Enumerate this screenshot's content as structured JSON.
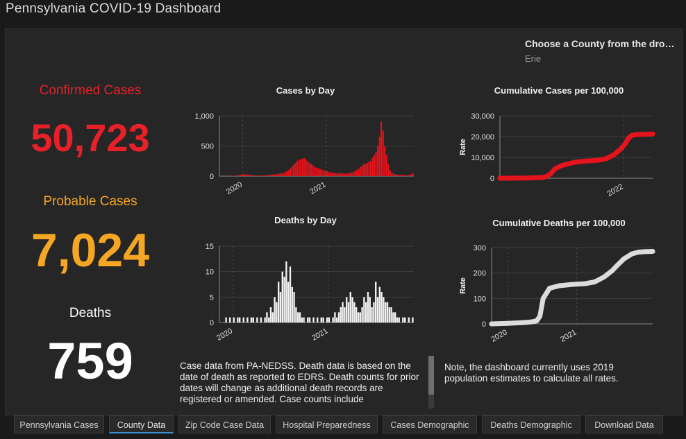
{
  "title": "Pennsylvania COVID-19 Dashboard",
  "county_select": {
    "label": "Choose a County from the dro…",
    "value": "Erie"
  },
  "stats": {
    "confirmed": {
      "label": "Confirmed Cases",
      "value": "50,723",
      "color": "#e8202a"
    },
    "probable": {
      "label": "Probable Cases",
      "value": "7,024",
      "color": "#f5a623"
    },
    "deaths": {
      "label": "Deaths",
      "value": "759",
      "color": "#ffffff"
    }
  },
  "notes": {
    "left": "Case data from PA-NEDSS.  Death data is based on the date of death as reported to EDRS. Death counts for prior dates will change as additional death records are registered or amended.  Case counts include",
    "right": "Note, the dashboard currently uses 2019 population estimates to calculate all rates."
  },
  "tabs": [
    "Pennsylvania Cases",
    "County Data",
    "Zip Code Case Data",
    "Hospital Preparedness",
    "Cases Demographic",
    "Deaths Demographic",
    "Download Data"
  ],
  "active_tab": 1,
  "chart_data": [
    {
      "id": "cases_by_day",
      "type": "bar",
      "title": "Cases by Day",
      "xlabel": "",
      "ylabel": "",
      "ylim": [
        0,
        1000
      ],
      "yticks": [
        {
          "v": 0,
          "label": "0"
        },
        {
          "v": 500,
          "label": "500"
        },
        {
          "v": 1000,
          "label": "1,000"
        }
      ],
      "xticks": [
        {
          "v": 0.12,
          "label": "2020"
        },
        {
          "v": 0.55,
          "label": "2021"
        }
      ],
      "color": "#e4131c",
      "values": [
        0,
        0,
        0,
        0,
        0,
        2,
        3,
        5,
        8,
        10,
        15,
        20,
        25,
        28,
        30,
        28,
        25,
        20,
        18,
        15,
        12,
        10,
        10,
        10,
        10,
        12,
        15,
        18,
        20,
        22,
        25,
        28,
        30,
        35,
        40,
        45,
        50,
        60,
        80,
        100,
        130,
        160,
        190,
        220,
        250,
        270,
        280,
        290,
        300,
        270,
        240,
        220,
        200,
        180,
        150,
        140,
        130,
        120,
        110,
        100,
        90,
        80,
        70,
        60,
        60,
        55,
        50,
        50,
        50,
        50,
        45,
        40,
        40,
        45,
        50,
        60,
        70,
        80,
        100,
        120,
        150,
        170,
        200,
        200,
        220,
        240,
        250,
        300,
        350,
        400,
        500,
        650,
        900,
        750,
        500,
        350,
        200,
        100,
        60,
        40,
        30,
        25,
        20,
        20,
        20,
        18,
        15,
        15,
        20,
        30,
        50
      ]
    },
    {
      "id": "cumulative_cases",
      "type": "line",
      "title": "Cumulative Cases per 100,000",
      "xlabel": "",
      "ylabel": "Rate",
      "ylim": [
        0,
        30000
      ],
      "yticks": [
        {
          "v": 0,
          "label": "0"
        },
        {
          "v": 10000,
          "label": "10,000"
        },
        {
          "v": 20000,
          "label": "20,000"
        },
        {
          "v": 30000,
          "label": "30,000"
        }
      ],
      "xticks": [
        {
          "v": 0.81,
          "label": "2022"
        }
      ],
      "color": "#e4131c",
      "x": [
        0,
        0.1,
        0.2,
        0.28,
        0.3,
        0.33,
        0.36,
        0.4,
        0.45,
        0.5,
        0.55,
        0.6,
        0.64,
        0.7,
        0.75,
        0.79,
        0.82,
        0.84,
        0.86,
        0.89,
        0.92,
        0.96,
        1.0
      ],
      "y": [
        0,
        50,
        150,
        400,
        700,
        2000,
        4500,
        6000,
        7000,
        7800,
        8200,
        8400,
        8600,
        9500,
        11500,
        14000,
        16500,
        19000,
        20500,
        21000,
        21100,
        21200,
        21300
      ]
    },
    {
      "id": "deaths_by_day",
      "type": "bar",
      "title": "Deaths by Day",
      "xlabel": "",
      "ylabel": "",
      "ylim": [
        0,
        15
      ],
      "yticks": [
        {
          "v": 0,
          "label": "0"
        },
        {
          "v": 5,
          "label": "5"
        },
        {
          "v": 10,
          "label": "10"
        },
        {
          "v": 15,
          "label": "15"
        }
      ],
      "xticks": [
        {
          "v": 0.07,
          "label": "2020"
        },
        {
          "v": 0.56,
          "label": "2021"
        }
      ],
      "color": "#f2f2f2",
      "values": [
        0,
        0,
        0,
        1,
        0,
        1,
        0,
        1,
        0,
        1,
        1,
        0,
        1,
        0,
        1,
        0,
        1,
        1,
        0,
        1,
        0,
        1,
        0,
        1,
        2,
        1,
        3,
        2,
        5,
        4,
        8,
        6,
        10,
        9,
        12,
        8,
        11,
        7,
        6,
        3,
        2,
        2,
        1,
        1,
        0,
        1,
        1,
        0,
        1,
        0,
        1,
        0,
        1,
        1,
        0,
        1,
        1,
        0,
        1,
        2,
        1,
        2,
        3,
        4,
        3,
        5,
        4,
        6,
        5,
        4,
        3,
        2,
        2,
        3,
        5,
        4,
        6,
        5,
        3,
        4,
        8,
        5,
        7,
        6,
        5,
        4,
        4,
        3,
        3,
        2,
        2,
        1,
        1,
        0,
        1,
        1,
        0,
        1,
        0,
        1
      ]
    },
    {
      "id": "cumulative_deaths",
      "type": "line",
      "title": "Cumulative Deaths per 100,000",
      "xlabel": "",
      "ylabel": "Rate",
      "ylim": [
        0,
        300
      ],
      "yticks": [
        {
          "v": 0,
          "label": "0"
        },
        {
          "v": 100,
          "label": "100"
        },
        {
          "v": 200,
          "label": "200"
        },
        {
          "v": 300,
          "label": "300"
        }
      ],
      "xticks": [
        {
          "v": 0.1,
          "label": "2020"
        },
        {
          "v": 0.53,
          "label": "2021"
        }
      ],
      "color": "#dcdcdc",
      "x": [
        0,
        0.1,
        0.2,
        0.25,
        0.28,
        0.3,
        0.32,
        0.36,
        0.42,
        0.5,
        0.58,
        0.64,
        0.7,
        0.75,
        0.78,
        0.82,
        0.87,
        0.91,
        0.95,
        1.0
      ],
      "y": [
        0,
        2,
        5,
        8,
        12,
        30,
        100,
        140,
        150,
        155,
        158,
        165,
        185,
        210,
        230,
        255,
        275,
        282,
        284,
        285
      ]
    }
  ]
}
